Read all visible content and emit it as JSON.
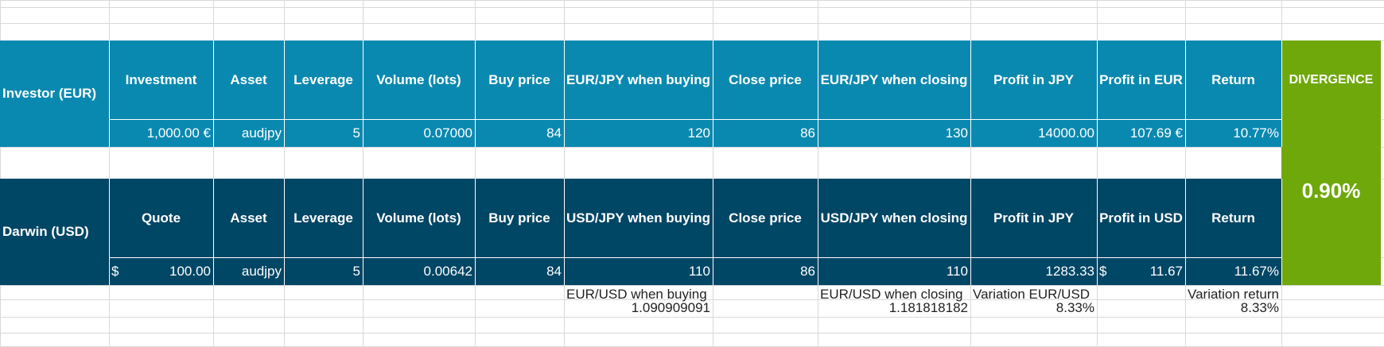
{
  "colors": {
    "investor_bg": "#0A89B0",
    "darwin_bg": "#004665",
    "divergence_bg": "#6FA80B",
    "gridline": "#D9D9D9",
    "text_on_dark": "#FFFFFF",
    "text_dark": "#222222"
  },
  "investor": {
    "row_label": "Investor (EUR)",
    "headers": [
      "Investment",
      "Asset",
      "Leverage",
      "Volume (lots)",
      "Buy price",
      "EUR/JPY when buying",
      "Close price",
      "EUR/JPY when closing",
      "Profit in JPY",
      "Profit in EUR",
      "Return"
    ],
    "values": [
      "1,000.00 €",
      "audjpy",
      "5",
      "0.07000",
      "84",
      "120",
      "86",
      "130",
      "14000.00",
      "107.69 €",
      "10.77%"
    ]
  },
  "darwin": {
    "row_label": "Darwin (USD)",
    "headers": [
      "Quote",
      "Asset",
      "Leverage",
      "Volume (lots)",
      "Buy price",
      "USD/JPY when buying",
      "Close price",
      "USD/JPY when closing",
      "Profit in JPY",
      "Profit in USD",
      "Return"
    ],
    "values": [
      "100.00",
      "audjpy",
      "5",
      "0.00642",
      "84",
      "110",
      "86",
      "110",
      "1283.33",
      "11.67",
      "11.67%"
    ],
    "currency_symbol": "$"
  },
  "divergence": {
    "label": "DIVERGENCE",
    "value": "0.90%"
  },
  "bottom": {
    "eurusd_buy_label": "EUR/USD when buying",
    "eurusd_buy_value": "1.090909091",
    "eurusd_close_label": "EUR/USD when closing",
    "eurusd_close_value": "1.181818182",
    "variation_label": "Variation EUR/USD",
    "variation_value": "8.33%",
    "variation_return_label": "Variation return",
    "variation_return_value": "8.33%"
  }
}
